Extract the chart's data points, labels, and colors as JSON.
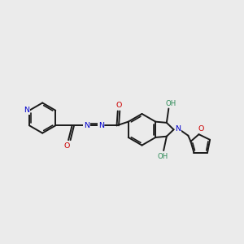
{
  "background_color": "#ebebeb",
  "bond_color": "#1a1a1a",
  "N_color": "#0000cc",
  "O_color": "#cc0000",
  "OH_color": "#2e8b57",
  "figsize": [
    3.0,
    3.0
  ],
  "dpi": 100,
  "xlim": [
    0,
    12
  ],
  "ylim": [
    0,
    12
  ]
}
